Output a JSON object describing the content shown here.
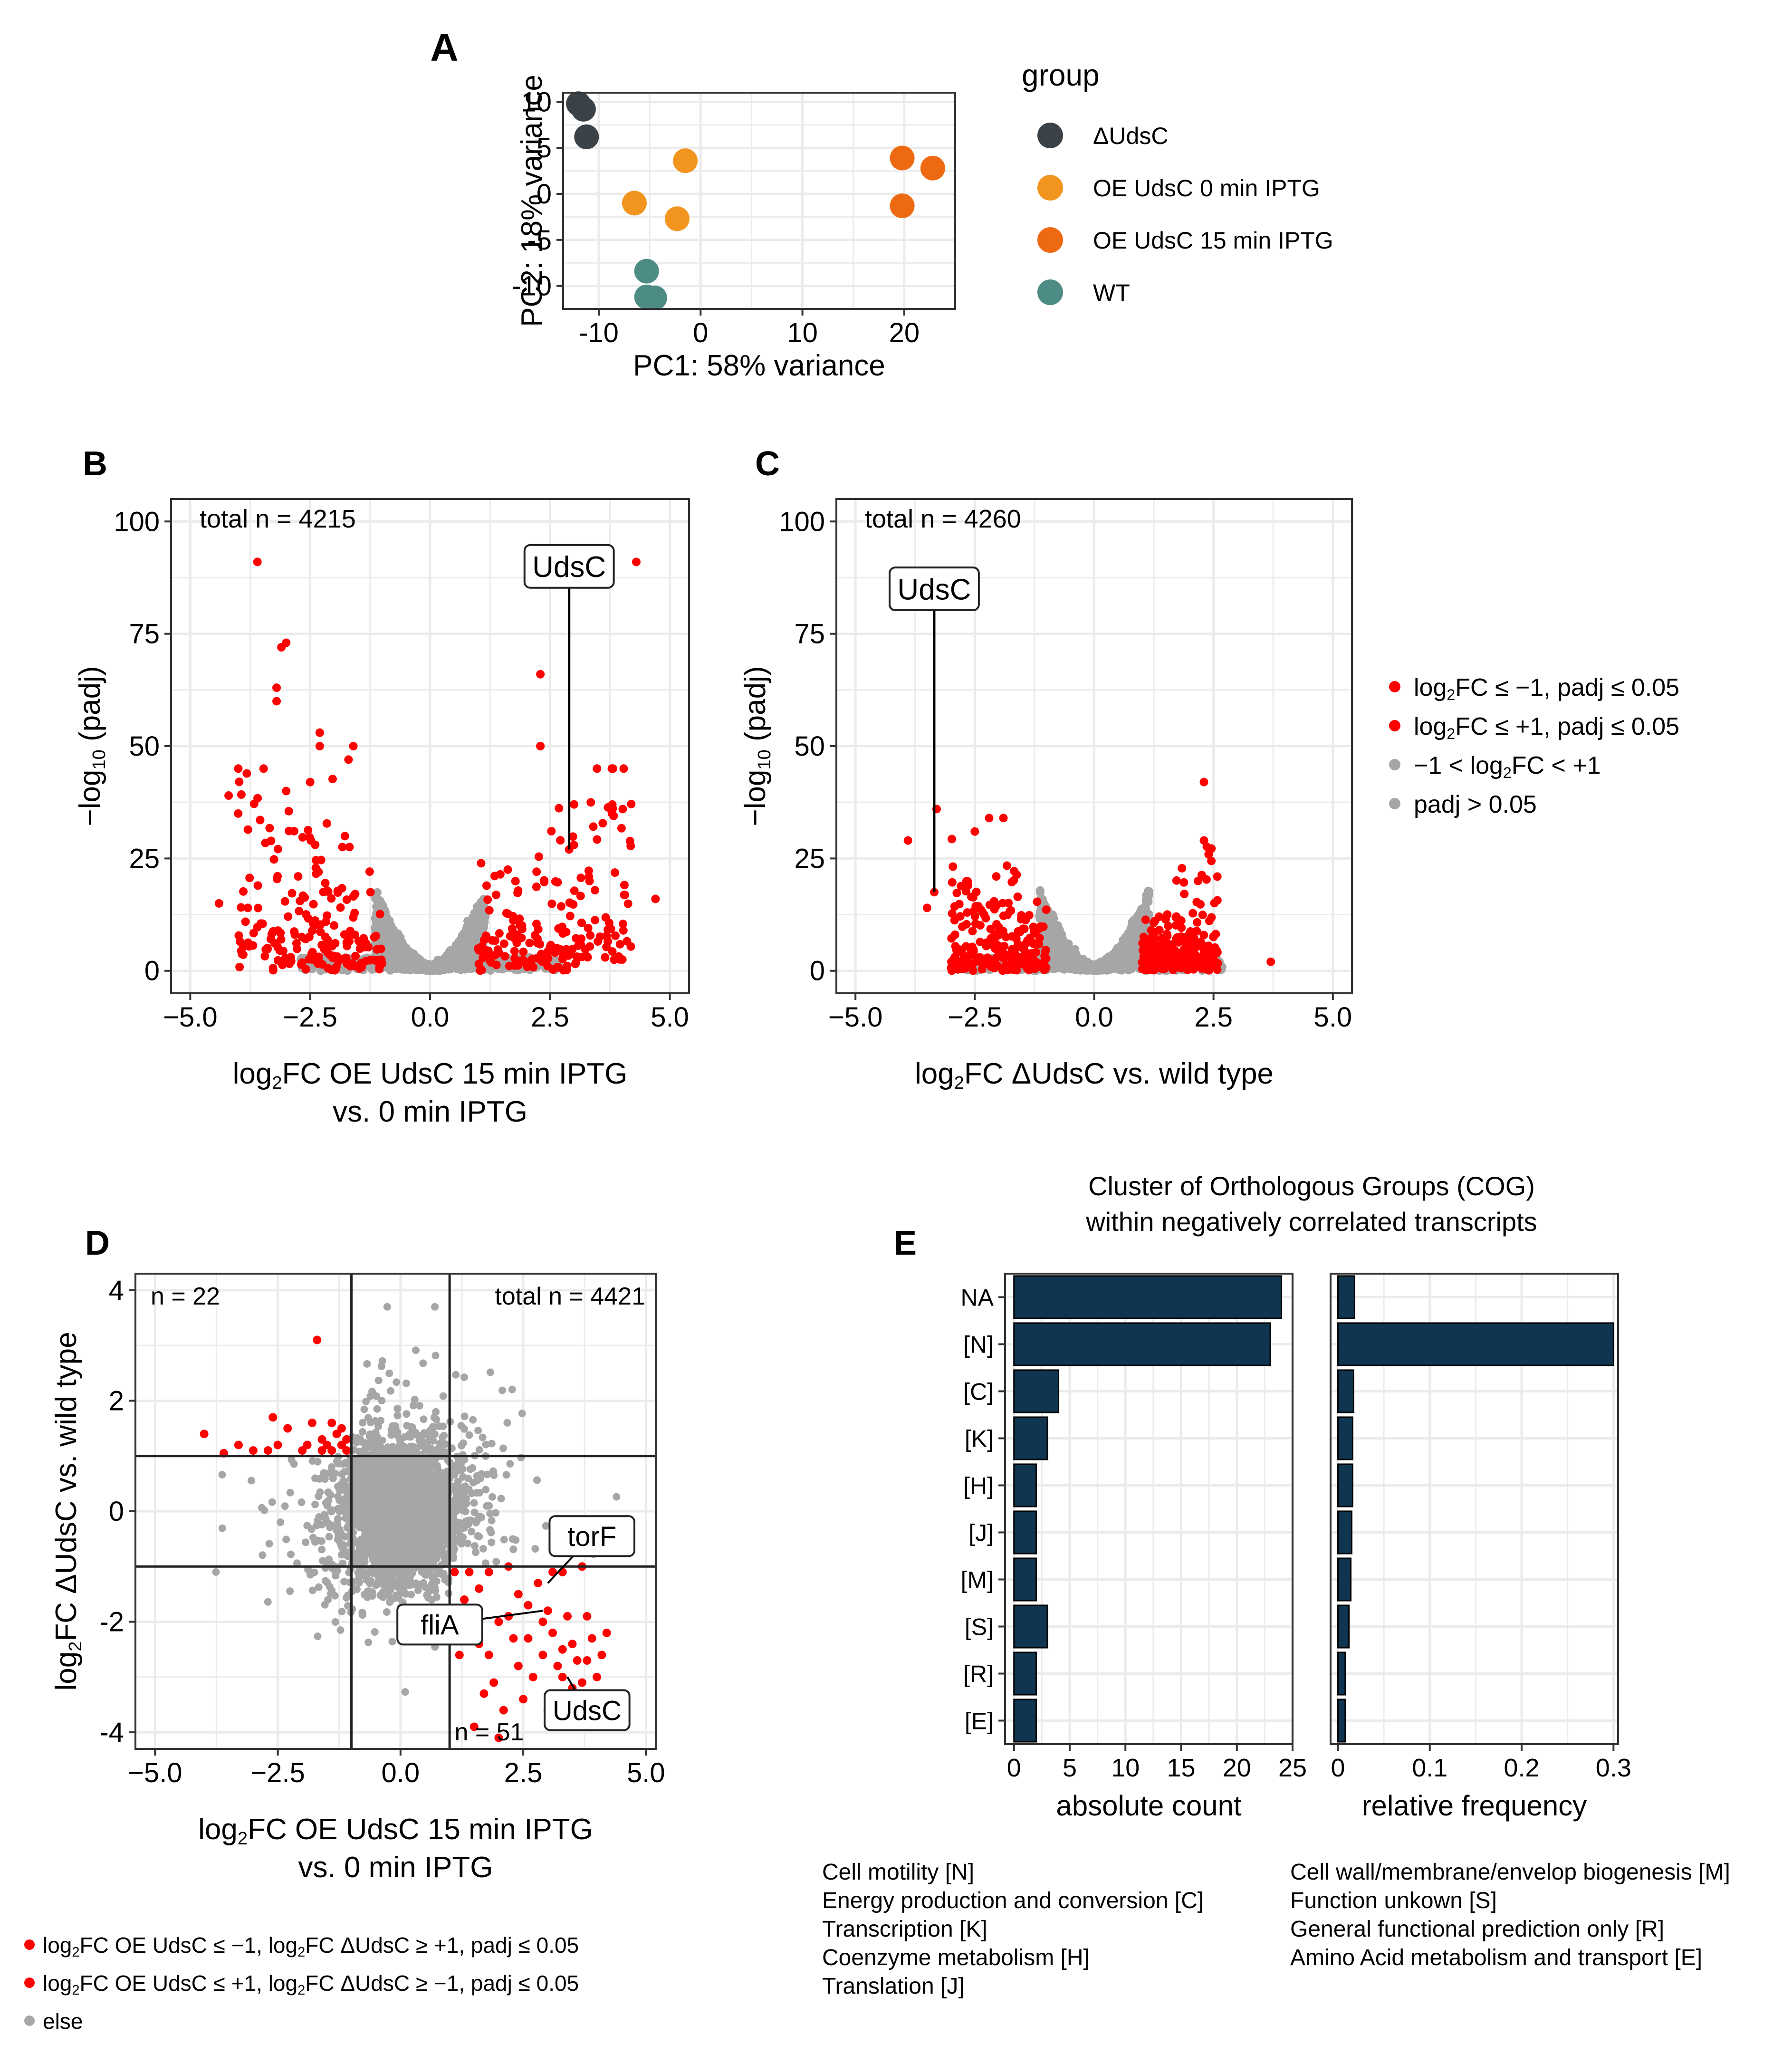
{
  "chart_data": [
    {
      "panel": "A",
      "type": "scatter",
      "xlabel": "PC1: 58% variance",
      "ylabel": "PC2: 18% variance",
      "xlim": [
        -13.5,
        25
      ],
      "ylim": [
        -12.5,
        11
      ],
      "xticks": [
        -10,
        0,
        10,
        20
      ],
      "yticks": [
        -10,
        -5,
        0,
        5,
        10
      ],
      "legend_title": "group",
      "series": [
        {
          "name": "ΔUdsC",
          "color": "#3a4147",
          "points": [
            [
              -12,
              9.8
            ],
            [
              -11.5,
              9.2
            ],
            [
              -11.2,
              6.2
            ]
          ]
        },
        {
          "name": "OE UdsC 0 min IPTG",
          "color": "#f2951f",
          "points": [
            [
              -1.5,
              3.6
            ],
            [
              -6.5,
              -1
            ],
            [
              -2.3,
              -2.7
            ]
          ]
        },
        {
          "name": "OE UdsC 15 min IPTG",
          "color": "#ee6a12",
          "points": [
            [
              19.8,
              3.9
            ],
            [
              22.8,
              2.8
            ],
            [
              19.8,
              -1.3
            ]
          ]
        },
        {
          "name": "WT",
          "color": "#4d8b85",
          "points": [
            [
              -5.3,
              -8.4
            ],
            [
              -5.3,
              -11.2
            ],
            [
              -4.5,
              -11.3
            ]
          ]
        }
      ]
    },
    {
      "panel": "B",
      "type": "scatter",
      "subtype": "volcano",
      "total_label": "total n = 4215",
      "xlabel_line1_pre": "log",
      "xlabel_line1_sub": "2",
      "xlabel_line1_post": "FC OE UdsC 15 min IPTG",
      "xlabel_line2": "vs. 0 min IPTG",
      "ylabel_pre": "−log",
      "ylabel_sub": "10",
      "ylabel_post": " (padj)",
      "xlim": [
        -5.4,
        5.4
      ],
      "ylim": [
        -5,
        105
      ],
      "xticks": [
        "−5.0",
        "−2.5",
        "0.0",
        "2.5",
        "5.0"
      ],
      "xtick_values": [
        -5,
        -2.5,
        0,
        2.5,
        5
      ],
      "yticks": [
        0,
        25,
        50,
        75,
        100
      ],
      "gene_label": "UdsC",
      "gene_point": [
        2.9,
        27
      ],
      "gene_label_pos": [
        2.9,
        90
      ],
      "highlight_points": [
        [
          -3.6,
          91
        ],
        [
          4.3,
          91
        ],
        [
          -3.0,
          73
        ],
        [
          -3.1,
          72
        ],
        [
          -3.2,
          63
        ],
        [
          -3.2,
          60
        ],
        [
          2.3,
          66
        ],
        [
          2.3,
          50
        ],
        [
          -2.3,
          53
        ],
        [
          -2.3,
          50
        ],
        [
          -1.6,
          50
        ],
        [
          -1.7,
          47
        ],
        [
          -4.2,
          39
        ],
        [
          -4.0,
          35
        ],
        [
          -3.0,
          40
        ],
        [
          -2.5,
          42
        ],
        [
          3.8,
          37
        ],
        [
          -4.4,
          15
        ],
        [
          -3.8,
          14
        ],
        [
          4.7,
          16
        ],
        [
          3.0,
          28
        ],
        [
          2.9,
          27
        ]
      ],
      "highlight_gen": {
        "seed": 11,
        "n": 380
      }
    },
    {
      "panel": "C",
      "type": "scatter",
      "subtype": "volcano",
      "total_label": "total n = 4260",
      "xlabel_line1_pre": "log",
      "xlabel_line1_sub": "2",
      "xlabel_line1_post": "FC ΔUdsC vs. wild type",
      "ylabel_pre": "−log",
      "ylabel_sub": "10",
      "ylabel_post": " (padj)",
      "xlim": [
        -5.4,
        5.4
      ],
      "ylim": [
        -5,
        105
      ],
      "xticks": [
        "−5.0",
        "−2.5",
        "0.0",
        "2.5",
        "5.0"
      ],
      "xtick_values": [
        -5,
        -2.5,
        0,
        2.5,
        5
      ],
      "yticks": [
        0,
        25,
        50,
        75,
        100
      ],
      "gene_label": "UdsC",
      "gene_point": [
        -3.35,
        17.5
      ],
      "gene_label_pos": [
        -3.35,
        85
      ],
      "highlight_points": [
        [
          -3.3,
          36
        ],
        [
          -3.9,
          29
        ],
        [
          -3.35,
          17.5
        ],
        [
          -3.5,
          14
        ],
        [
          2.3,
          42
        ],
        [
          2.3,
          29
        ],
        [
          3.7,
          2
        ],
        [
          -2.2,
          34
        ],
        [
          -1.9,
          34
        ],
        [
          -2.5,
          31
        ]
      ],
      "highlight_gen": {
        "seed": 23,
        "n": 480
      }
    },
    {
      "panel": "D",
      "type": "scatter",
      "total_label": "total n = 4421",
      "n_upper_left": "n = 22",
      "n_lower_right": "n = 51",
      "xlabel_line1_pre": "log",
      "xlabel_line1_sub": "2",
      "xlabel_line1_post": "FC OE UdsC 15 min IPTG",
      "xlabel_line2": "vs. 0 min IPTG",
      "ylabel_pre": "log",
      "ylabel_sub": "2",
      "ylabel_post": "FC ΔUdsC vs. wild type",
      "xlim": [
        -5.4,
        5.2
      ],
      "ylim": [
        -4.3,
        4.3
      ],
      "xticks": [
        "−5.0",
        "−2.5",
        "0.0",
        "2.5",
        "5.0"
      ],
      "xtick_values": [
        -5,
        -2.5,
        0,
        2.5,
        5
      ],
      "yticks": [
        -4,
        -2,
        0,
        2,
        4
      ],
      "thresholds": {
        "x": [
          -1,
          1
        ],
        "y": [
          -1,
          1
        ]
      },
      "labels": [
        {
          "text": "torF",
          "point": [
            3.0,
            -1.3
          ],
          "label_at": [
            3.9,
            -0.45
          ]
        },
        {
          "text": "fliA",
          "point": [
            2.9,
            -1.8
          ],
          "label_at": [
            0.8,
            -2.05
          ]
        },
        {
          "text": "UdsC",
          "point": [
            3.4,
            -3.0
          ],
          "label_at": [
            3.8,
            -3.6
          ]
        }
      ],
      "upper_left_points": [
        [
          -4.0,
          1.4
        ],
        [
          -3.3,
          1.2
        ],
        [
          -3.0,
          1.1
        ],
        [
          -2.6,
          1.7
        ],
        [
          -2.5,
          1.2
        ],
        [
          -2.3,
          1.5
        ],
        [
          -2.0,
          1.1
        ],
        [
          -1.8,
          1.6
        ],
        [
          -1.7,
          3.1
        ],
        [
          -1.6,
          1.3
        ],
        [
          -1.5,
          1.2
        ],
        [
          -1.4,
          1.1
        ],
        [
          -1.3,
          1.4
        ],
        [
          -1.2,
          1.2
        ],
        [
          -1.1,
          1.1
        ],
        [
          -1.1,
          1.3
        ],
        [
          -1.6,
          1.1
        ],
        [
          -2.7,
          1.1
        ],
        [
          -1.9,
          1.2
        ],
        [
          -3.6,
          1.05
        ],
        [
          -1.2,
          1.5
        ],
        [
          -1.4,
          1.6
        ]
      ],
      "lower_right_points": [
        [
          1.1,
          -1.1
        ],
        [
          1.4,
          -1.1
        ],
        [
          1.8,
          -1.1
        ],
        [
          2.2,
          -1.0
        ],
        [
          2.4,
          -1.5
        ],
        [
          2.6,
          -1.7
        ],
        [
          3.1,
          -1.1
        ],
        [
          3.3,
          -1.1
        ],
        [
          3.7,
          -1.0
        ],
        [
          2.2,
          -1.9
        ],
        [
          1.5,
          -2.0
        ],
        [
          2.0,
          -2.0
        ],
        [
          1.6,
          -2.4
        ],
        [
          1.2,
          -2.6
        ],
        [
          2.3,
          -2.3
        ],
        [
          2.9,
          -2.0
        ],
        [
          3.1,
          -2.2
        ],
        [
          3.3,
          -2.5
        ],
        [
          3.5,
          -2.4
        ],
        [
          3.6,
          -2.7
        ],
        [
          3.8,
          -2.7
        ],
        [
          3.9,
          -2.3
        ],
        [
          4.2,
          -2.2
        ],
        [
          3.2,
          -2.8
        ],
        [
          3.3,
          -3.0
        ],
        [
          3.5,
          -3.2
        ],
        [
          3.7,
          -3.1
        ],
        [
          2.9,
          -2.6
        ],
        [
          2.6,
          -2.3
        ],
        [
          1.5,
          -3.9
        ],
        [
          1.9,
          -3.1
        ],
        [
          2.1,
          -3.6
        ],
        [
          2.0,
          -4.1
        ],
        [
          2.7,
          -3.0
        ],
        [
          2.4,
          -2.8
        ],
        [
          3.9,
          -3.4
        ],
        [
          4.0,
          -3.0
        ],
        [
          3.6,
          -3.6
        ],
        [
          3.0,
          -3.6
        ],
        [
          1.8,
          -2.6
        ],
        [
          1.3,
          -1.6
        ],
        [
          1.6,
          -1.4
        ],
        [
          2.8,
          -1.3
        ],
        [
          3.0,
          -1.8
        ],
        [
          3.4,
          -1.9
        ],
        [
          3.8,
          -1.9
        ],
        [
          4.1,
          -2.6
        ],
        [
          3.2,
          -3.3
        ],
        [
          3.4,
          -3.5
        ],
        [
          2.5,
          -3.4
        ],
        [
          1.7,
          -3.3
        ]
      ]
    },
    {
      "panel": "E",
      "type": "bar",
      "orientation": "horizontal",
      "title_line1": "Cluster of Orthologous Groups (COG)",
      "title_line2": "within negatively correlated transcripts",
      "categories": [
        "NA",
        "[N]",
        "[C]",
        "[K]",
        "[H]",
        "[J]",
        "[M]",
        "[S]",
        "[R]",
        "[E]"
      ],
      "series": [
        {
          "name": "absolute count",
          "xlabel": "absolute count",
          "xlim": [
            -0.8,
            25
          ],
          "xticks": [
            0,
            5,
            10,
            15,
            20,
            25
          ],
          "values": [
            24,
            23,
            4,
            3,
            2,
            2,
            2,
            3,
            2,
            2
          ]
        },
        {
          "name": "relative frequency",
          "xlabel": "relative frequency",
          "xlim": [
            -0.008,
            0.305
          ],
          "xticks": [
            0.0,
            0.1,
            0.2,
            0.3
          ],
          "values": [
            0.018,
            0.3,
            0.017,
            0.016,
            0.016,
            0.015,
            0.014,
            0.012,
            0.008,
            0.008
          ]
        }
      ],
      "bar_color": "#0f3550"
    }
  ],
  "panel_letters": {
    "A": "A",
    "B": "B",
    "C": "C",
    "D": "D",
    "E": "E"
  },
  "volcano_legend": [
    {
      "pre": "log",
      "sub": "2",
      "post": "FC ≤ −1, padj ≤ 0.05",
      "color": "#ff0000"
    },
    {
      "pre": "log",
      "sub": "2",
      "post": "FC ≤ +1, padj ≤ 0.05",
      "color": "#ff0000"
    },
    {
      "pre": "−1 < log",
      "sub": "2",
      "post": "FC < +1",
      "color": "#a6a6a6"
    },
    {
      "pre": "padj > 0.05",
      "sub": "",
      "post": "",
      "color": "#a6a6a6"
    }
  ],
  "scatter_legend": [
    {
      "pre": "log",
      "sub": "2",
      "mid": "FC OE UdsC ≤ −1, log",
      "sub2": "2",
      "post": "FC ΔUdsC ≥ +1, padj ≤ 0.05",
      "color": "#ff0000"
    },
    {
      "pre": "log",
      "sub": "2",
      "mid": "FC OE UdsC ≤ +1, log",
      "sub2": "2",
      "post": "FC ΔUdsC ≥ −1, padj ≤ 0.05",
      "color": "#ff0000"
    },
    {
      "pre": "else",
      "sub": "",
      "mid": "",
      "sub2": "",
      "post": "",
      "color": "#a6a6a6"
    }
  ],
  "cog_legend": {
    "left": [
      "Cell motility [N]",
      "Energy production and conversion [C]",
      "Transcription [K]",
      "Coenzyme metabolism [H]",
      "Translation [J]"
    ],
    "right": [
      "Cell wall/membrane/envelop biogenesis [M]",
      "Function unkown [S]",
      "General functional prediction only [R]",
      "Amino Acid metabolism and transport [E]"
    ]
  },
  "colors": {
    "red": "#ff0000",
    "grey": "#a6a6a6",
    "grid": "#ebebeb",
    "panel_border": "#333333"
  }
}
